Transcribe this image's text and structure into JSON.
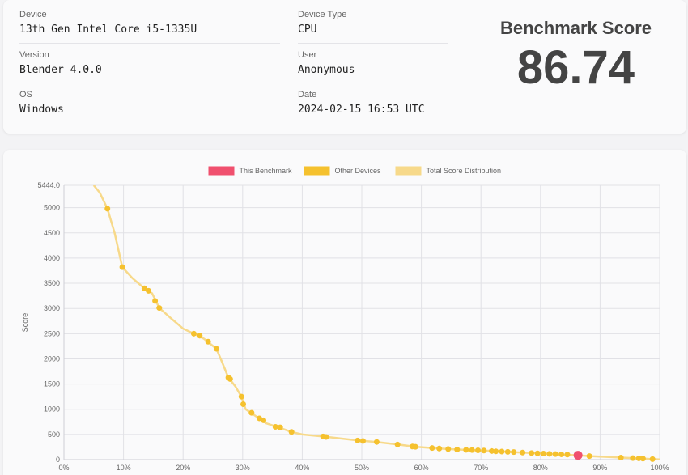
{
  "info": {
    "device_label": "Device",
    "device_value": "13th Gen Intel Core i5-1335U",
    "version_label": "Version",
    "version_value": "Blender 4.0.0",
    "os_label": "OS",
    "os_value": "Windows",
    "device_type_label": "Device Type",
    "device_type_value": "CPU",
    "user_label": "User",
    "user_value": "Anonymous",
    "date_label": "Date",
    "date_value": "2024-02-15 16:53 UTC"
  },
  "score": {
    "title": "Benchmark Score",
    "value": "86.74"
  },
  "chart_data": {
    "type": "scatter",
    "ylabel": "Score",
    "xlabel": "",
    "ylim": [
      0,
      5444.0
    ],
    "xlim": [
      0,
      100
    ],
    "y_ticks": [
      "0",
      "500",
      "1000",
      "1500",
      "2000",
      "2500",
      "3000",
      "3500",
      "4000",
      "4500",
      "5000",
      "5444.0"
    ],
    "x_ticks": [
      "0%",
      "10%",
      "20%",
      "30%",
      "40%",
      "50%",
      "60%",
      "70%",
      "80%",
      "90%",
      "100%"
    ],
    "grid": true,
    "legend_position": "top-center",
    "series": [
      {
        "name": "This Benchmark",
        "color": "#f0506e",
        "points": [
          [
            86.3,
            87
          ]
        ]
      },
      {
        "name": "Other Devices",
        "color": "#f5c12e",
        "points": [
          [
            7.3,
            4980
          ],
          [
            9.8,
            3820
          ],
          [
            13.5,
            3400
          ],
          [
            14.2,
            3350
          ],
          [
            15.3,
            3150
          ],
          [
            16.0,
            3010
          ],
          [
            21.8,
            2500
          ],
          [
            22.8,
            2460
          ],
          [
            24.2,
            2340
          ],
          [
            25.6,
            2200
          ],
          [
            27.6,
            1630
          ],
          [
            27.9,
            1600
          ],
          [
            29.8,
            1250
          ],
          [
            30.1,
            1100
          ],
          [
            31.5,
            930
          ],
          [
            32.8,
            820
          ],
          [
            33.5,
            780
          ],
          [
            35.5,
            650
          ],
          [
            36.3,
            640
          ],
          [
            38.2,
            550
          ],
          [
            43.5,
            460
          ],
          [
            44.0,
            450
          ],
          [
            49.3,
            380
          ],
          [
            50.2,
            370
          ],
          [
            52.5,
            350
          ],
          [
            56.0,
            300
          ],
          [
            58.5,
            260
          ],
          [
            59.0,
            255
          ],
          [
            61.8,
            230
          ],
          [
            63.0,
            220
          ],
          [
            64.5,
            210
          ],
          [
            66.0,
            200
          ],
          [
            67.5,
            195
          ],
          [
            68.5,
            190
          ],
          [
            69.5,
            185
          ],
          [
            70.5,
            180
          ],
          [
            71.8,
            170
          ],
          [
            72.5,
            165
          ],
          [
            73.5,
            160
          ],
          [
            74.5,
            155
          ],
          [
            75.5,
            150
          ],
          [
            77.0,
            140
          ],
          [
            78.5,
            130
          ],
          [
            79.5,
            125
          ],
          [
            80.5,
            120
          ],
          [
            81.5,
            115
          ],
          [
            82.5,
            110
          ],
          [
            83.5,
            105
          ],
          [
            84.5,
            100
          ],
          [
            88.2,
            70
          ],
          [
            93.5,
            40
          ],
          [
            95.5,
            30
          ],
          [
            96.5,
            25
          ],
          [
            97.2,
            20
          ],
          [
            98.8,
            10
          ]
        ]
      },
      {
        "name": "Total Score Distribution",
        "color": "#f7d98a",
        "points": [
          [
            5.0,
            5444
          ],
          [
            6.0,
            5300
          ],
          [
            7.3,
            4980
          ],
          [
            8.5,
            4500
          ],
          [
            9.8,
            3820
          ],
          [
            11.5,
            3600
          ],
          [
            13.5,
            3400
          ],
          [
            14.8,
            3300
          ],
          [
            16.0,
            3010
          ],
          [
            18.0,
            2800
          ],
          [
            20.0,
            2600
          ],
          [
            21.8,
            2500
          ],
          [
            23.5,
            2400
          ],
          [
            25.6,
            2200
          ],
          [
            26.5,
            1950
          ],
          [
            27.6,
            1630
          ],
          [
            28.8,
            1450
          ],
          [
            29.8,
            1250
          ],
          [
            30.5,
            1000
          ],
          [
            32.0,
            880
          ],
          [
            34.0,
            720
          ],
          [
            36.0,
            640
          ],
          [
            38.2,
            550
          ],
          [
            40.0,
            500
          ],
          [
            43.5,
            460
          ],
          [
            49.3,
            380
          ],
          [
            52.5,
            350
          ],
          [
            56.0,
            300
          ],
          [
            59.0,
            255
          ],
          [
            63.0,
            220
          ],
          [
            66.0,
            200
          ],
          [
            70.5,
            180
          ],
          [
            74.5,
            155
          ],
          [
            78.5,
            130
          ],
          [
            82.5,
            110
          ],
          [
            86.3,
            87
          ],
          [
            88.2,
            70
          ],
          [
            93.5,
            40
          ],
          [
            96.5,
            25
          ],
          [
            98.8,
            10
          ],
          [
            100,
            5
          ]
        ]
      }
    ]
  }
}
